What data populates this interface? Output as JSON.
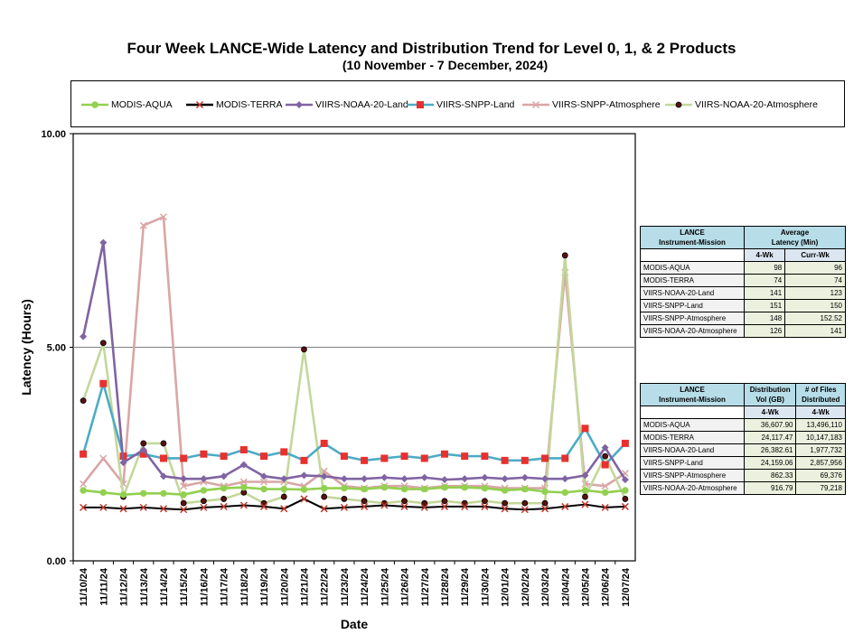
{
  "chart_data": {
    "type": "line",
    "title": "Four Week LANCE-Wide Latency and Distribution Trend for Level 0, 1, & 2 Products",
    "subtitle": "(10  November    -  7  December,  2024)",
    "xlabel": "Date",
    "ylabel": "Latency (Hours)",
    "ylim": [
      0,
      10
    ],
    "yticks": [
      "0.00",
      "5.00",
      "10.00"
    ],
    "grid": "horizontal at 5.00",
    "legend_position": "top",
    "categories": [
      "11/10/24",
      "11/11/24",
      "11/12/24",
      "11/13/24",
      "11/14/24",
      "11/15/24",
      "11/16/24",
      "11/17/24",
      "11/18/24",
      "11/19/24",
      "11/20/24",
      "11/21/24",
      "11/22/24",
      "11/23/24",
      "11/24/24",
      "11/25/24",
      "11/26/24",
      "11/27/24",
      "11/28/24",
      "11/29/24",
      "11/30/24",
      "12/01/24",
      "12/02/24",
      "12/03/24",
      "12/04/24",
      "12/05/24",
      "12/06/24",
      "12/07/24"
    ],
    "series": [
      {
        "name": "MODIS-AQUA",
        "color": "#92d050",
        "marker": "circle",
        "values": [
          1.65,
          1.6,
          1.55,
          1.58,
          1.58,
          1.55,
          1.65,
          1.7,
          1.72,
          1.68,
          1.68,
          1.67,
          1.7,
          1.7,
          1.68,
          1.72,
          1.68,
          1.68,
          1.72,
          1.72,
          1.7,
          1.65,
          1.68,
          1.62,
          1.6,
          1.65,
          1.6,
          1.65
        ]
      },
      {
        "name": "MODIS-TERRA",
        "color": "#000000",
        "marker": "x",
        "values": [
          1.25,
          1.25,
          1.22,
          1.25,
          1.22,
          1.2,
          1.25,
          1.27,
          1.3,
          1.27,
          1.22,
          1.45,
          1.22,
          1.25,
          1.27,
          1.3,
          1.27,
          1.25,
          1.27,
          1.27,
          1.27,
          1.22,
          1.2,
          1.22,
          1.27,
          1.32,
          1.25,
          1.27
        ]
      },
      {
        "name": "VIIRS-NOAA-20-Land",
        "color": "#8064a2",
        "marker": "diamond",
        "values": [
          5.25,
          7.45,
          2.3,
          2.6,
          1.98,
          1.92,
          1.92,
          1.98,
          2.25,
          1.98,
          1.92,
          2.0,
          1.98,
          1.92,
          1.92,
          1.95,
          1.92,
          1.95,
          1.9,
          1.92,
          1.95,
          1.92,
          1.95,
          1.92,
          1.92,
          2.0,
          2.65,
          1.9
        ]
      },
      {
        "name": "VIIRS-SNPP-Land",
        "color": "#4bacc6",
        "marker": "square",
        "values": [
          2.5,
          4.15,
          2.45,
          2.5,
          2.4,
          2.4,
          2.5,
          2.45,
          2.6,
          2.45,
          2.55,
          2.35,
          2.75,
          2.45,
          2.35,
          2.4,
          2.45,
          2.4,
          2.5,
          2.45,
          2.45,
          2.35,
          2.35,
          2.4,
          2.4,
          3.1,
          2.25,
          2.75
        ]
      },
      {
        "name": "VIIRS-SNPP-Atmosphere",
        "color": "#d9a6a6",
        "marker": "x",
        "values": [
          1.8,
          2.4,
          1.8,
          7.85,
          8.05,
          1.75,
          1.85,
          1.75,
          1.85,
          1.85,
          1.85,
          1.75,
          2.1,
          1.75,
          1.7,
          1.75,
          1.75,
          1.7,
          1.75,
          1.75,
          1.75,
          1.7,
          1.7,
          1.7,
          6.75,
          1.8,
          1.75,
          2.05
        ]
      },
      {
        "name": "VIIRS-NOAA-20-Atmosphere",
        "color": "#c4d79b",
        "marker": "dot",
        "values": [
          3.75,
          5.1,
          1.5,
          2.75,
          2.75,
          1.35,
          1.4,
          1.45,
          1.6,
          1.35,
          1.5,
          4.95,
          1.5,
          1.45,
          1.4,
          1.35,
          1.4,
          1.35,
          1.4,
          1.35,
          1.4,
          1.35,
          1.35,
          1.35,
          7.15,
          1.5,
          2.45,
          1.45
        ]
      }
    ]
  },
  "latency_table": {
    "header_col1": "LANCE\nInstrument-Mission",
    "header_col2": "Average\nLatency (Min)",
    "sub_4wk": "4-Wk",
    "sub_currwk": "Curr-Wk",
    "rows": [
      {
        "name": "MODIS-AQUA",
        "wk4": "98",
        "curr": "96"
      },
      {
        "name": "MODIS-TERRA",
        "wk4": "74",
        "curr": "74"
      },
      {
        "name": "VIIRS-NOAA-20-Land",
        "wk4": "141",
        "curr": "123"
      },
      {
        "name": "VIIRS-SNPP-Land",
        "wk4": "151",
        "curr": "150"
      },
      {
        "name": "VIIRS-SNPP-Atmosphere",
        "wk4": "148",
        "curr": "152.52"
      },
      {
        "name": "VIIRS-NOAA-20-Atmosphere",
        "wk4": "126",
        "curr": "141"
      }
    ]
  },
  "distribution_table": {
    "header_col1": "LANCE\nInstrument-Mission",
    "header_col2": "Distribution\nVol (GB)",
    "header_col3": "# of Files\nDistributed",
    "sub_col2": "4-Wk",
    "sub_col3": "4-Wk",
    "rows": [
      {
        "name": "MODIS-AQUA",
        "vol": "36,607.90",
        "files": "13,496,110"
      },
      {
        "name": "MODIS-TERRA",
        "vol": "24,117.47",
        "files": "10,147,183"
      },
      {
        "name": "VIIRS-NOAA-20-Land",
        "vol": "26,382.61",
        "files": "1,977,732"
      },
      {
        "name": "VIIRS-SNPP-Land",
        "vol": "24,159.06",
        "files": "2,857,956"
      },
      {
        "name": "VIIRS-SNPP-Atmosphere",
        "vol": "862.33",
        "files": "69,376"
      },
      {
        "name": "VIIRS-NOAA-20-Atmosphere",
        "vol": "916.79",
        "files": "79,218"
      }
    ]
  }
}
